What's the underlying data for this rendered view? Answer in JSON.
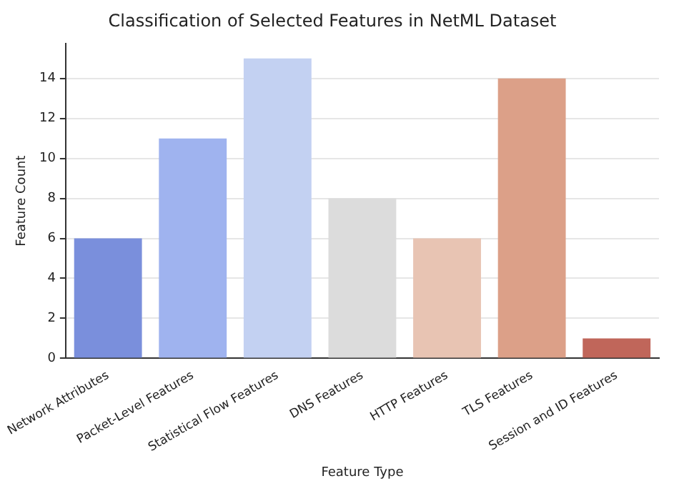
{
  "chart_data": {
    "type": "bar",
    "title": "Classification of Selected Features in NetML Dataset",
    "xlabel": "Feature Type",
    "ylabel": "Feature Count",
    "categories": [
      "Network Attributes",
      "Packet-Level Features",
      "Statistical Flow Features",
      "DNS Features",
      "HTTP Features",
      "TLS Features",
      "Session and ID Features"
    ],
    "values": [
      6,
      11,
      15,
      8,
      6,
      14,
      1
    ],
    "colors": [
      "#7a8fdc",
      "#9fb3ef",
      "#c3d1f2",
      "#dcdcdc",
      "#e8c4b3",
      "#dca088",
      "#c0665a"
    ],
    "ylim": [
      0,
      15.75
    ],
    "yticks": [
      0,
      2,
      4,
      6,
      8,
      10,
      12,
      14
    ],
    "grid": "y"
  }
}
